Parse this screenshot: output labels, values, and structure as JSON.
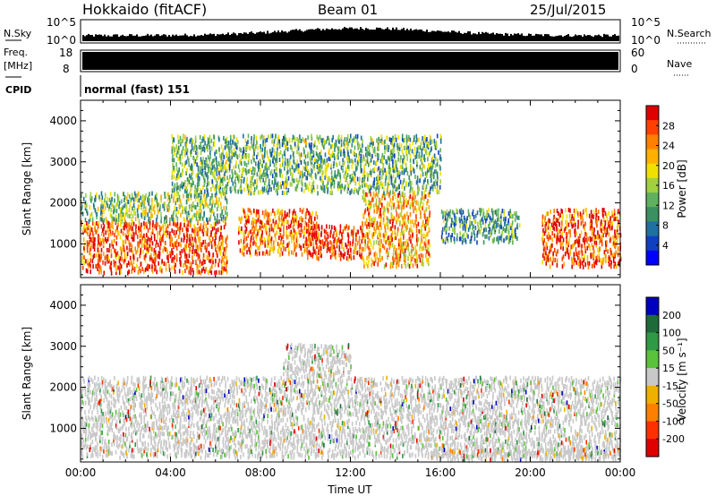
{
  "header": {
    "station": "Hokkaido (fitACF)",
    "beam": "Beam 01",
    "date": "25/Jul/2015"
  },
  "top_panels": {
    "nsky_label": "N.Sky",
    "nsky_ticks": [
      "10^5",
      "10^0"
    ],
    "nsearch_label": "N.Search",
    "nsearch_ticks": [
      "10^5",
      "10^0"
    ],
    "freq_label": "Freq.",
    "freq_unit": "[MHz]",
    "freq_ticks": [
      "18",
      "8"
    ],
    "nave_label": "Nave",
    "nave_ticks": [
      "60",
      "0"
    ],
    "cpid_label": "CPID",
    "cpid_text": "normal (fast) 151"
  },
  "chart_data": [
    {
      "type": "heatmap",
      "name": "power-panel",
      "ylabel": "Slant Range [km]",
      "xlabel": "",
      "yticks": [
        1000,
        2000,
        3000,
        4000
      ],
      "ylim": [
        180,
        4500
      ],
      "xlim": [
        "00:00",
        "24:00"
      ],
      "colorbar": {
        "label": "Power [dB]",
        "ticks": [
          "28",
          "24",
          "20",
          "16",
          "12",
          "8",
          "4"
        ],
        "colors": [
          "#e00000",
          "#ff4000",
          "#ff8000",
          "#ffb000",
          "#f0e000",
          "#a0d040",
          "#60b060",
          "#3a9060",
          "#2070a0",
          "#1040c0",
          "#0000ff"
        ]
      },
      "bands": [
        {
          "t0": 0.0,
          "t1": 6.5,
          "r0": 250,
          "r1": 1500,
          "level": 0.85
        },
        {
          "t0": 0.0,
          "t1": 6.5,
          "r0": 1500,
          "r1": 2200,
          "level": 0.45
        },
        {
          "t0": 7.0,
          "t1": 10.5,
          "r0": 700,
          "r1": 1800,
          "level": 0.8
        },
        {
          "t0": 10.0,
          "t1": 12.5,
          "r0": 600,
          "r1": 1400,
          "level": 0.9
        },
        {
          "t0": 12.5,
          "t1": 15.5,
          "r0": 400,
          "r1": 2200,
          "level": 0.7
        },
        {
          "t0": 16.0,
          "t1": 19.5,
          "r0": 1000,
          "r1": 1800,
          "level": 0.35
        },
        {
          "t0": 20.5,
          "t1": 24.0,
          "r0": 400,
          "r1": 1800,
          "level": 0.85
        },
        {
          "t0": 4.0,
          "t1": 16.0,
          "r0": 2200,
          "r1": 3600,
          "level": 0.4
        }
      ]
    },
    {
      "type": "heatmap",
      "name": "velocity-panel",
      "ylabel": "Slant Range [km]",
      "xlabel": "Time UT",
      "xticks": [
        "00:00",
        "04:00",
        "08:00",
        "12:00",
        "16:00",
        "20:00",
        "00:00"
      ],
      "yticks": [
        1000,
        2000,
        3000,
        4000
      ],
      "ylim": [
        180,
        4500
      ],
      "xlim": [
        "00:00",
        "24:00"
      ],
      "colorbar": {
        "label": "Velocity [m s⁻¹]",
        "ticks": [
          "200",
          "100",
          "50",
          "15",
          "-15",
          "-50",
          "-100",
          "-200"
        ],
        "colors": [
          "#0000c0",
          "#1e6b3a",
          "#2f9a45",
          "#5bc23c",
          "#c8c8c8",
          "#f0b000",
          "#ff8000",
          "#ff3000",
          "#e00000"
        ]
      },
      "bands": [
        {
          "t0": 0.0,
          "t1": 24.0,
          "r0": 250,
          "r1": 2200,
          "level": 0.5
        },
        {
          "t0": 9.0,
          "t1": 12.0,
          "r0": 2200,
          "r1": 3000,
          "level": 0.5
        },
        {
          "t0": 17.5,
          "t1": 19.0,
          "r0": 900,
          "r1": 1300,
          "level": 0.65
        },
        {
          "t0": 15.5,
          "t1": 24.0,
          "r0": 180,
          "r1": 450,
          "level": 0.35
        }
      ]
    }
  ]
}
